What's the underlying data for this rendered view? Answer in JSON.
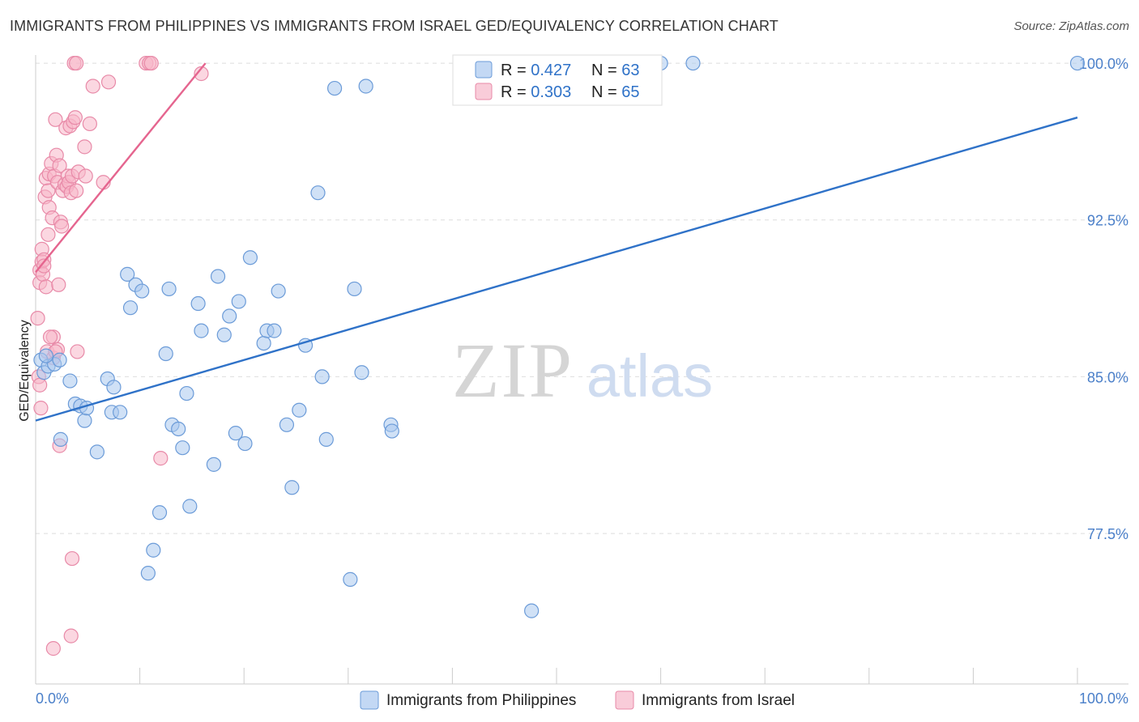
{
  "title": "IMMIGRANTS FROM PHILIPPINES VS IMMIGRANTS FROM ISRAEL GED/EQUIVALENCY CORRELATION CHART",
  "source": "Source: ZipAtlas.com",
  "watermark": {
    "zip": "ZIP",
    "atlas": "atlas"
  },
  "chart_data": {
    "type": "scatter",
    "xlabel": "",
    "ylabel": "GED/Equivalency",
    "xlim": [
      0,
      100
    ],
    "ylim": [
      70.3,
      100.7
    ],
    "x_tick_labels": {
      "left": "0.0%",
      "right": "100.0%"
    },
    "y_ticks": [
      {
        "value": 100.0,
        "label": "100.0%"
      },
      {
        "value": 92.5,
        "label": "92.5%"
      },
      {
        "value": 85.0,
        "label": "85.0%"
      },
      {
        "value": 77.5,
        "label": "77.5%"
      }
    ],
    "legend_stats": [
      {
        "r_label": "R = ",
        "r_value": "0.427",
        "n_label": "N = ",
        "n_value": "63"
      },
      {
        "r_label": "R = ",
        "r_value": "0.303",
        "n_label": "N = ",
        "n_value": "65"
      }
    ],
    "series": [
      {
        "name": "Immigrants from Philippines",
        "color": "#a9c8ef",
        "stroke": "#6b9bd8",
        "line_color": "#2f72c8",
        "trend": {
          "x": [
            0,
            100
          ],
          "y": [
            82.9,
            97.4
          ]
        },
        "points": [
          [
            0.5,
            85.8
          ],
          [
            0.8,
            85.2
          ],
          [
            1.2,
            85.5
          ],
          [
            1.8,
            85.6
          ],
          [
            2.3,
            85.8
          ],
          [
            2.4,
            82.0
          ],
          [
            3.3,
            84.8
          ],
          [
            3.8,
            83.7
          ],
          [
            4.3,
            83.6
          ],
          [
            4.7,
            82.9
          ],
          [
            4.9,
            83.5
          ],
          [
            5.9,
            81.4
          ],
          [
            6.9,
            84.9
          ],
          [
            7.3,
            83.3
          ],
          [
            7.5,
            84.5
          ],
          [
            8.1,
            83.3
          ],
          [
            8.8,
            89.9
          ],
          [
            9.1,
            88.3
          ],
          [
            9.6,
            89.4
          ],
          [
            10.2,
            89.1
          ],
          [
            10.8,
            75.6
          ],
          [
            11.3,
            76.7
          ],
          [
            11.9,
            78.5
          ],
          [
            12.5,
            86.1
          ],
          [
            12.8,
            89.2
          ],
          [
            13.1,
            82.7
          ],
          [
            13.7,
            82.5
          ],
          [
            14.1,
            81.6
          ],
          [
            14.5,
            84.2
          ],
          [
            14.8,
            78.8
          ],
          [
            15.6,
            88.5
          ],
          [
            15.9,
            87.2
          ],
          [
            17.1,
            80.8
          ],
          [
            17.5,
            89.8
          ],
          [
            18.1,
            87.0
          ],
          [
            18.6,
            87.9
          ],
          [
            19.2,
            82.3
          ],
          [
            19.5,
            88.6
          ],
          [
            20.1,
            81.8
          ],
          [
            20.6,
            90.7
          ],
          [
            21.9,
            86.6
          ],
          [
            22.2,
            87.2
          ],
          [
            23.3,
            89.1
          ],
          [
            22.9,
            87.2
          ],
          [
            24.1,
            82.7
          ],
          [
            24.6,
            79.7
          ],
          [
            25.3,
            83.4
          ],
          [
            25.9,
            86.5
          ],
          [
            27.1,
            93.8
          ],
          [
            27.5,
            85.0
          ],
          [
            27.9,
            82.0
          ],
          [
            28.7,
            98.8
          ],
          [
            30.2,
            75.3
          ],
          [
            30.6,
            89.2
          ],
          [
            31.3,
            85.2
          ],
          [
            31.7,
            98.9
          ],
          [
            34.1,
            82.7
          ],
          [
            34.2,
            82.4
          ],
          [
            47.6,
            73.8
          ],
          [
            60.0,
            100.0
          ],
          [
            63.1,
            100.0
          ],
          [
            100.0,
            100.0
          ],
          [
            1.0,
            86.0
          ]
        ]
      },
      {
        "name": "Immigrants from Israel",
        "color": "#f7b6c9",
        "stroke": "#e88aa8",
        "line_color": "#e5658f",
        "trend": {
          "x": [
            0,
            16.3
          ],
          "y": [
            90.0,
            100.0
          ]
        },
        "points": [
          [
            0.2,
            87.8
          ],
          [
            0.3,
            85.0
          ],
          [
            0.4,
            84.6
          ],
          [
            0.5,
            83.5
          ],
          [
            0.4,
            90.1
          ],
          [
            0.4,
            89.5
          ],
          [
            0.6,
            91.1
          ],
          [
            0.6,
            90.5
          ],
          [
            0.7,
            89.9
          ],
          [
            0.8,
            90.6
          ],
          [
            0.8,
            90.3
          ],
          [
            0.9,
            93.6
          ],
          [
            1.0,
            94.5
          ],
          [
            1.0,
            89.3
          ],
          [
            1.1,
            86.2
          ],
          [
            1.2,
            93.9
          ],
          [
            1.2,
            91.8
          ],
          [
            1.3,
            93.1
          ],
          [
            1.3,
            94.7
          ],
          [
            1.5,
            95.2
          ],
          [
            1.6,
            92.6
          ],
          [
            1.7,
            86.9
          ],
          [
            1.7,
            85.9
          ],
          [
            1.8,
            94.6
          ],
          [
            1.9,
            97.3
          ],
          [
            2.0,
            95.6
          ],
          [
            2.1,
            94.3
          ],
          [
            2.1,
            86.3
          ],
          [
            2.2,
            89.4
          ],
          [
            2.3,
            81.7
          ],
          [
            2.3,
            95.1
          ],
          [
            2.4,
            92.4
          ],
          [
            2.5,
            92.2
          ],
          [
            2.6,
            93.9
          ],
          [
            2.8,
            94.2
          ],
          [
            2.9,
            96.9
          ],
          [
            3.0,
            94.1
          ],
          [
            3.1,
            94.6
          ],
          [
            3.2,
            94.3
          ],
          [
            3.3,
            97.0
          ],
          [
            3.4,
            93.8
          ],
          [
            3.5,
            94.6
          ],
          [
            3.6,
            97.2
          ],
          [
            3.8,
            97.4
          ],
          [
            3.9,
            93.9
          ],
          [
            4.0,
            86.2
          ],
          [
            4.1,
            94.8
          ],
          [
            4.7,
            96.0
          ],
          [
            4.8,
            94.6
          ],
          [
            5.2,
            97.1
          ],
          [
            5.5,
            98.9
          ],
          [
            6.5,
            94.3
          ],
          [
            7.0,
            99.1
          ],
          [
            1.7,
            72.0
          ],
          [
            3.4,
            72.6
          ],
          [
            3.5,
            76.3
          ],
          [
            3.7,
            100.0
          ],
          [
            3.9,
            100.0
          ],
          [
            10.6,
            100.0
          ],
          [
            10.9,
            100.0
          ],
          [
            11.1,
            100.0
          ],
          [
            12.0,
            81.1
          ],
          [
            15.9,
            99.5
          ],
          [
            1.4,
            86.9
          ],
          [
            1.9,
            86.2
          ]
        ]
      }
    ]
  }
}
